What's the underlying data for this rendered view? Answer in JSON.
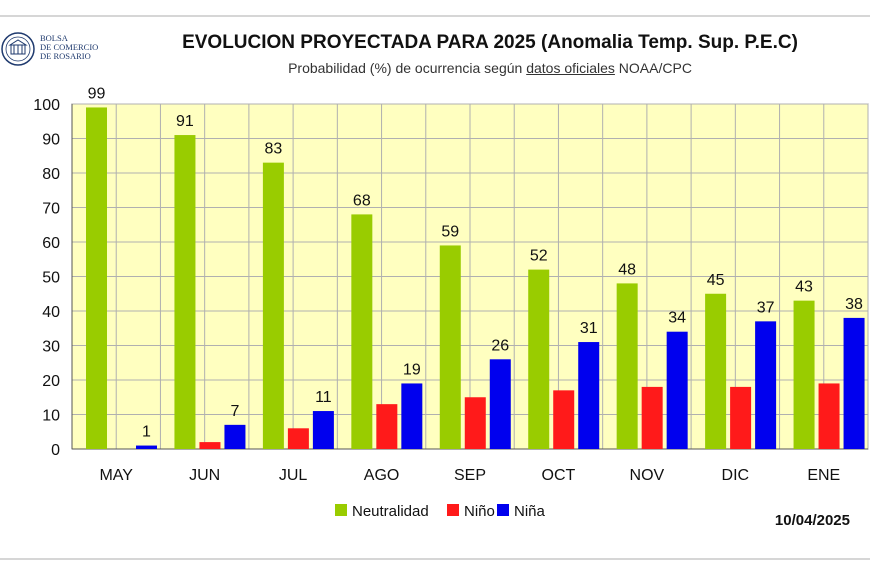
{
  "logo": {
    "lines": [
      "BOLSA",
      "DE COMERCIO",
      "DE ROSARIO"
    ],
    "icon": "bolsa-comercio-rosario-seal-icon"
  },
  "header": {
    "title": "EVOLUCION PROYECTADA PARA 2025 (Anomalia Temp. Sup. P.E.C)",
    "subtitle_prefix": "Probabilidad (%) de ocurrencia según ",
    "subtitle_underlined": "datos oficiales",
    "subtitle_suffix": " NOAA/CPC"
  },
  "footer": {
    "date": "10/04/2025"
  },
  "chart_data": {
    "type": "bar",
    "categories": [
      "MAY",
      "JUN",
      "JUL",
      "AGO",
      "SEP",
      "OCT",
      "NOV",
      "DIC",
      "ENE"
    ],
    "series": [
      {
        "name": "Neutralidad",
        "color": "#99cc00",
        "values": [
          99,
          91,
          83,
          68,
          59,
          52,
          48,
          45,
          43
        ],
        "labels": [
          "99",
          "91",
          "83",
          "68",
          "59",
          "52",
          "48",
          "45",
          "43"
        ]
      },
      {
        "name": "Niño",
        "color": "#ff1a1a",
        "values": [
          0,
          2,
          6,
          13,
          15,
          17,
          18,
          18,
          19
        ],
        "labels": [
          "",
          "",
          "",
          "",
          "",
          "",
          "",
          "",
          ""
        ]
      },
      {
        "name": "Niña",
        "color": "#0000ee",
        "values": [
          1,
          7,
          11,
          19,
          26,
          31,
          34,
          37,
          38
        ],
        "labels": [
          "1",
          "7",
          "11",
          "19",
          "26",
          "31",
          "34",
          "37",
          "38"
        ]
      }
    ],
    "ylim": [
      0,
      100
    ],
    "yticks": [
      "0",
      "10",
      "20",
      "30",
      "40",
      "50",
      "60",
      "70",
      "80",
      "90",
      "100"
    ],
    "grid": true,
    "plot_background": "#ffffc0",
    "legend_position": "bottom-center"
  }
}
